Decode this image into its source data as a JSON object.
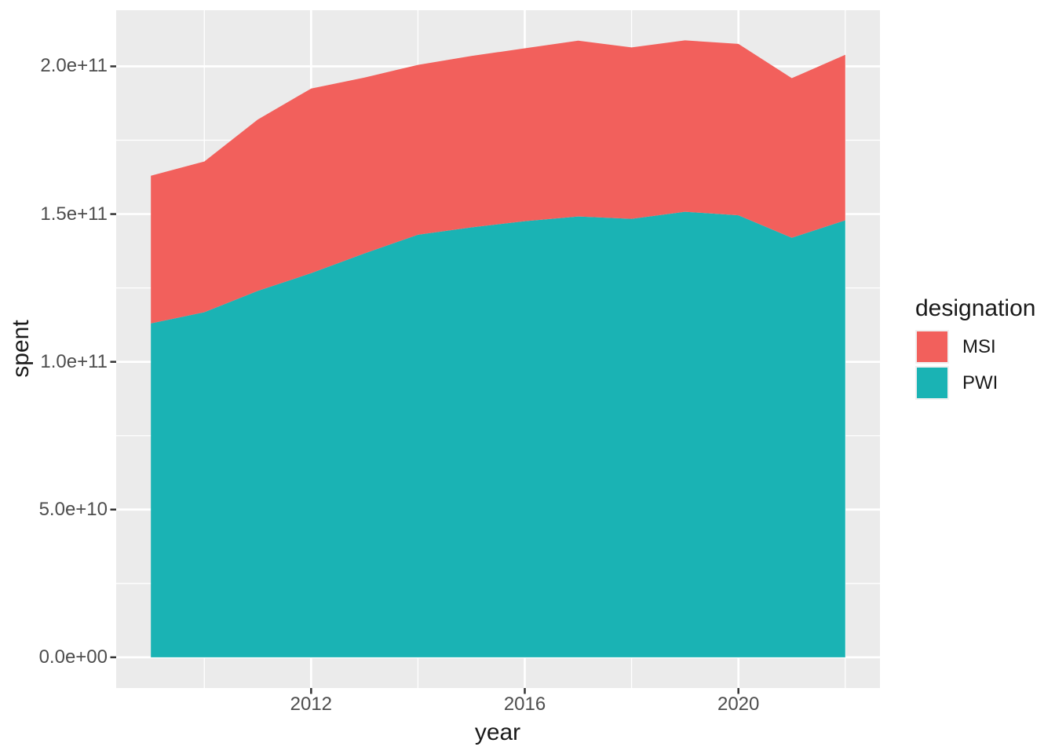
{
  "figure": {
    "background": "#FFFFFF",
    "panel_background": "#EBEBEB",
    "grid_color": "#FFFFFF",
    "tick_mark_color": "#333333",
    "axis_text_color": "#4D4D4D"
  },
  "axes": {
    "x": {
      "title": "year",
      "tick_labels": [
        "2012",
        "2016",
        "2020"
      ]
    },
    "y": {
      "title": "spent",
      "tick_labels": [
        "0.0e+00",
        "5.0e+10",
        "1.0e+11",
        "1.5e+11",
        "2.0e+11"
      ]
    }
  },
  "legend": {
    "title": "designation",
    "items": [
      {
        "label": "MSI",
        "color": "#F2605C"
      },
      {
        "label": "PWI",
        "color": "#1AB3B4"
      }
    ]
  },
  "chart_data": {
    "type": "area",
    "stacked": true,
    "title": "",
    "xlabel": "year",
    "ylabel": "spent",
    "x": [
      2009,
      2010,
      2011,
      2012,
      2013,
      2014,
      2015,
      2016,
      2017,
      2018,
      2019,
      2020,
      2021,
      2022
    ],
    "series": [
      {
        "name": "PWI",
        "color": "#1AB3B4",
        "values": [
          113000000000.0,
          116800000000.0,
          124000000000.0,
          130000000000.0,
          136700000000.0,
          143000000000.0,
          145500000000.0,
          147600000000.0,
          149200000000.0,
          148400000000.0,
          150800000000.0,
          149600000000.0,
          142000000000.0,
          147900000000.0
        ]
      },
      {
        "name": "MSI",
        "color": "#F2605C",
        "values": [
          50000000000.0,
          51000000000.0,
          58000000000.0,
          62500000000.0,
          59500000000.0,
          57500000000.0,
          58000000000.0,
          58500000000.0,
          59500000000.0,
          58000000000.0,
          58000000000.0,
          58000000000.0,
          54000000000.0,
          56000000000.0
        ]
      }
    ],
    "totals": [
      163000000000.0,
      167800000000.0,
      182000000000.0,
      192500000000.0,
      196200000000.0,
      200500000000.0,
      203500000000.0,
      206100000000.0,
      208700000000.0,
      206400000000.0,
      208800000000.0,
      207600000000.0,
      196000000000.0,
      203900000000.0
    ],
    "xlim": [
      2008.35,
      2022.65
    ],
    "ylim": [
      -10400000000.0,
      219000000000.0
    ],
    "x_ticks_major": [
      2012,
      2016,
      2020
    ],
    "x_ticks_minor": [
      2010,
      2014,
      2018,
      2022
    ],
    "y_ticks_major": [
      0,
      50000000000.0,
      100000000000.0,
      150000000000.0,
      200000000000.0
    ],
    "y_ticks_minor": [
      25000000000.0,
      75000000000.0,
      125000000000.0,
      175000000000.0
    ],
    "grid": true,
    "legend_title": "designation",
    "legend_position": "right",
    "legend_order": [
      "MSI",
      "PWI"
    ]
  }
}
